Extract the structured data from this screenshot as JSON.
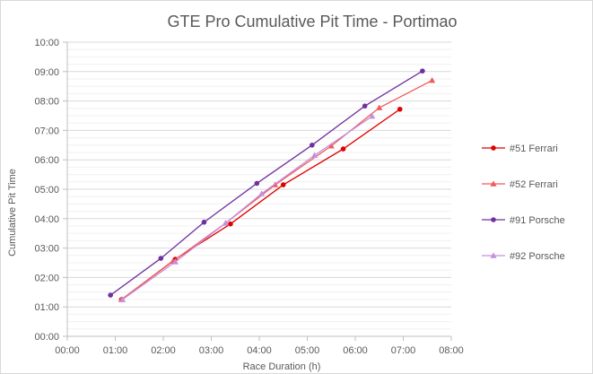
{
  "chart_data": {
    "type": "line",
    "title": "GTE Pro Cumulative Pit Time - Portimao",
    "xlabel": "Race Duration (h)",
    "ylabel": "Cumulative Pit Time",
    "xlim": [
      0,
      8
    ],
    "ylim": [
      0,
      10
    ],
    "x_ticks": [
      "00:00",
      "01:00",
      "02:00",
      "03:00",
      "04:00",
      "05:00",
      "06:00",
      "07:00",
      "08:00"
    ],
    "y_ticks": [
      "00:00",
      "01:00",
      "02:00",
      "03:00",
      "04:00",
      "05:00",
      "06:00",
      "07:00",
      "08:00",
      "09:00",
      "10:00"
    ],
    "grid": true,
    "legend_position": "right",
    "series": [
      {
        "name": "#51 Ferrari",
        "color": "#e00000",
        "marker": "circle",
        "x": [
          1.13,
          2.25,
          3.4,
          4.5,
          5.75,
          6.93
        ],
        "y": [
          1.25,
          2.62,
          3.82,
          5.15,
          6.37,
          7.72
        ]
      },
      {
        "name": "#52 Ferrari",
        "color": "#f25a5a",
        "marker": "triangle",
        "x": [
          1.13,
          2.2,
          3.3,
          4.33,
          5.5,
          6.5,
          7.6
        ],
        "y": [
          1.25,
          2.55,
          3.85,
          5.15,
          6.47,
          7.77,
          8.7
        ]
      },
      {
        "name": "#91 Porsche",
        "color": "#7030a0",
        "marker": "circle",
        "x": [
          0.9,
          1.95,
          2.85,
          3.95,
          5.1,
          6.2,
          7.4
        ],
        "y": [
          1.4,
          2.65,
          3.88,
          5.2,
          6.5,
          7.83,
          9.02
        ]
      },
      {
        "name": "#92 Porsche",
        "color": "#c38fe0",
        "marker": "triangle",
        "x": [
          1.15,
          2.25,
          3.3,
          4.05,
          5.15,
          6.35
        ],
        "y": [
          1.25,
          2.53,
          3.85,
          4.85,
          6.15,
          7.48
        ]
      }
    ]
  }
}
